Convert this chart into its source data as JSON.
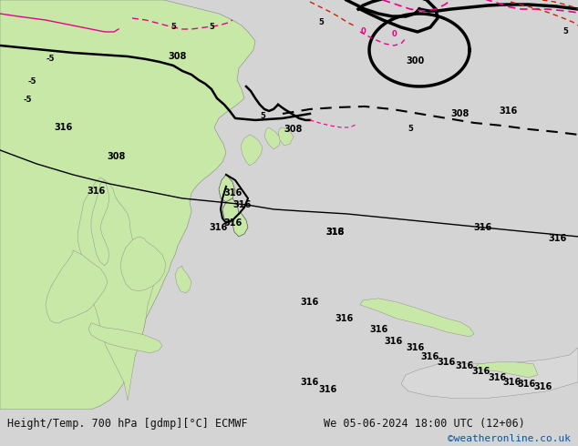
{
  "title_left": "Height/Temp. 700 hPa [gdmp][°C] ECMWF",
  "title_right": "We 05-06-2024 18:00 UTC (12+06)",
  "credit": "©weatheronline.co.uk",
  "credit_color": "#0055aa",
  "bg_ocean": "#d4d4d4",
  "bg_land_green": "#c8e8a8",
  "bg_land_gray": "#b8b8b8",
  "bottom_bg": "#e8e8e8",
  "bottom_text_color": "#111111",
  "fig_width": 6.34,
  "fig_height": 4.9,
  "dpi": 100,
  "font_size_bottom": 8.5,
  "font_size_credit": 8
}
